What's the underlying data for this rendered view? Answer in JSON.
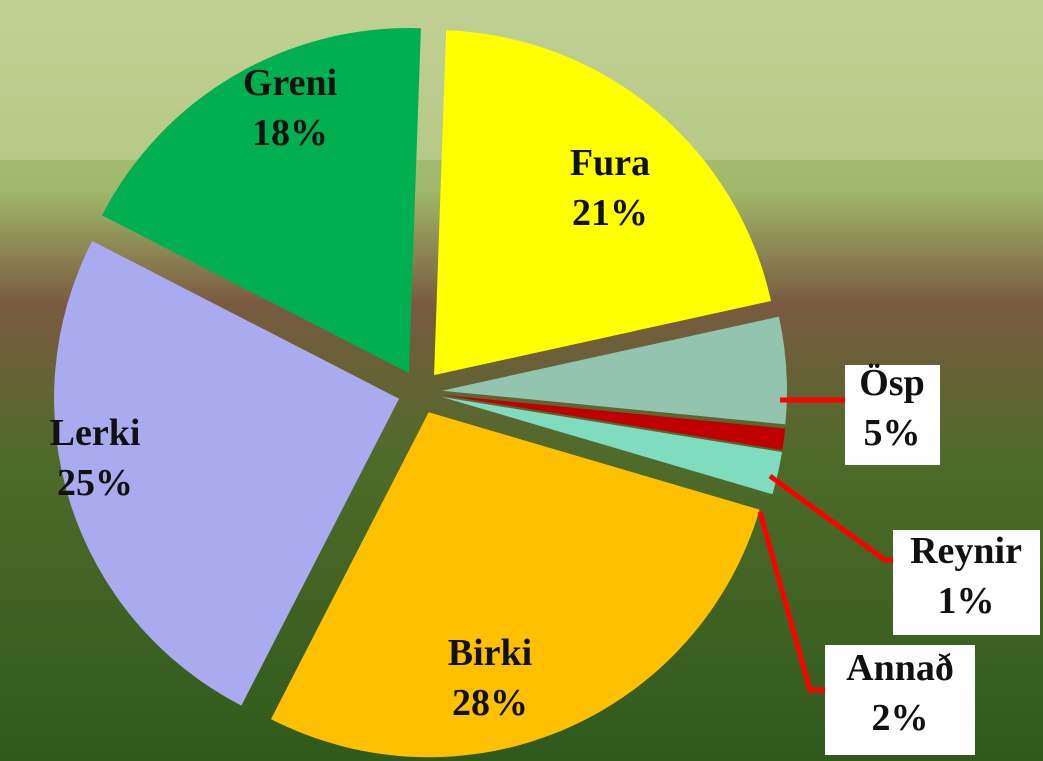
{
  "chart_data": {
    "type": "pie",
    "categories": [
      "Fura",
      "Ösp",
      "Reynir",
      "Annað",
      "Birki",
      "Lerki",
      "Greni"
    ],
    "values": [
      21,
      5,
      1,
      2,
      28,
      25,
      18
    ],
    "value_labels": [
      "21%",
      "5%",
      "1%",
      "2%",
      "28%",
      "25%",
      "18%"
    ],
    "colors": [
      "#ffff00",
      "#93c4b0",
      "#c00000",
      "#7fdcbf",
      "#ffc000",
      "#aaaaee",
      "#00b050"
    ]
  }
}
